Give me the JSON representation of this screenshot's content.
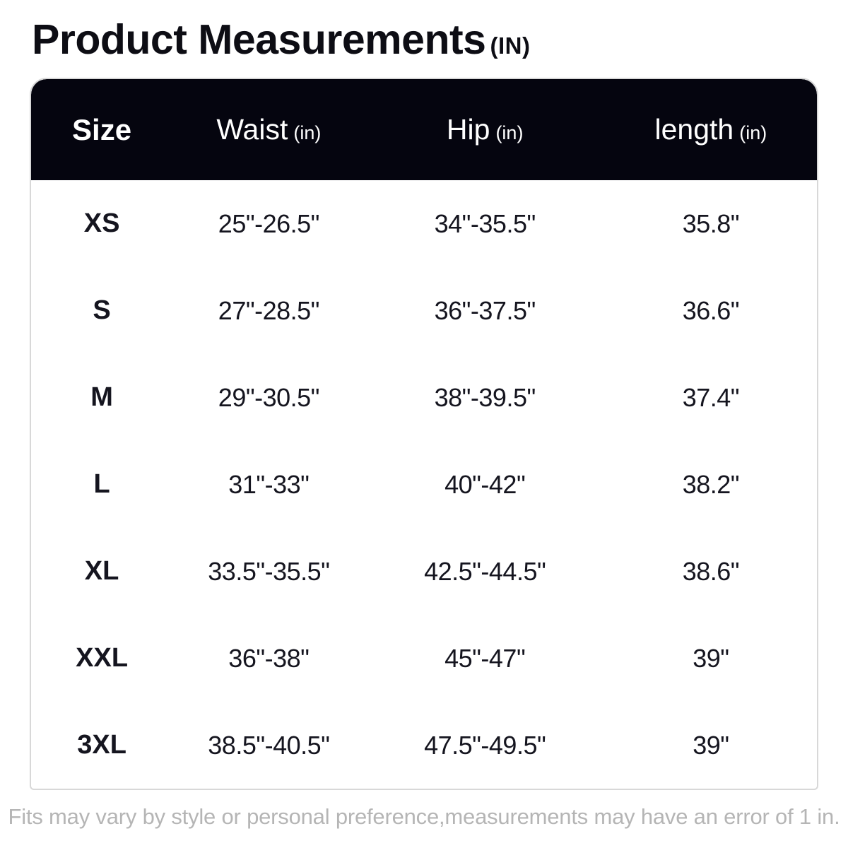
{
  "title": {
    "text": "Product Measurements",
    "unit_suffix": "(IN)"
  },
  "table": {
    "columns": [
      {
        "label": "Size",
        "unit": ""
      },
      {
        "label": "Waist",
        "unit": "(in)"
      },
      {
        "label": "Hip",
        "unit": "(in)"
      },
      {
        "label": "length",
        "unit": "(in)"
      }
    ],
    "rows": [
      {
        "size": "XS",
        "waist": "25\"-26.5\"",
        "hip": "34\"-35.5\"",
        "length": "35.8\""
      },
      {
        "size": "S",
        "waist": "27\"-28.5\"",
        "hip": "36\"-37.5\"",
        "length": "36.6\""
      },
      {
        "size": "M",
        "waist": "29\"-30.5\"",
        "hip": "38\"-39.5\"",
        "length": "37.4\""
      },
      {
        "size": "L",
        "waist": "31\"-33\"",
        "hip": "40\"-42\"",
        "length": "38.2\""
      },
      {
        "size": "XL",
        "waist": "33.5\"-35.5\"",
        "hip": "42.5\"-44.5\"",
        "length": "38.6\""
      },
      {
        "size": "XXL",
        "waist": "36\"-38\"",
        "hip": "45\"-47\"",
        "length": "39\""
      },
      {
        "size": "3XL",
        "waist": "38.5\"-40.5\"",
        "hip": "47.5\"-49.5\"",
        "length": "39\""
      }
    ]
  },
  "footer": {
    "note": "Fits may vary by style or personal preference,measurements may have an error of 1 in."
  },
  "colors": {
    "header_bg": "#05050f",
    "header_text": "#ffffff",
    "body_text": "#15151f",
    "title_text": "#0d0d14",
    "card_border": "#d8d8d8",
    "footer_text": "#b5b5b5"
  }
}
